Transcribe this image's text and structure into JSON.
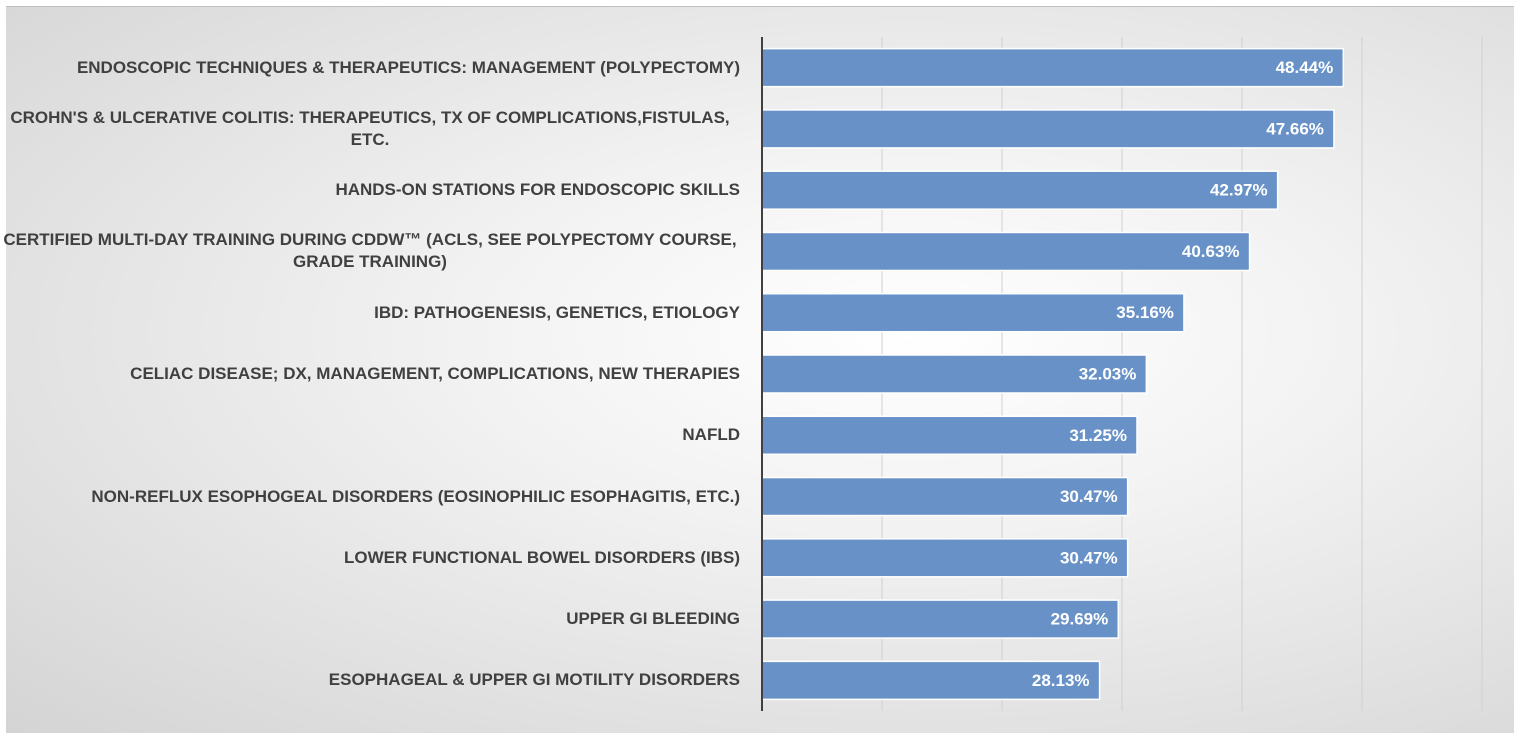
{
  "chart_data": {
    "type": "barh",
    "categories": [
      "ENDOSCOPIC TECHNIQUES & THERAPEUTICS: MANAGEMENT (POLYPECTOMY)",
      "CROHN'S & ULCERATIVE COLITIS: THERAPEUTICS, TX OF COMPLICATIONS,FISTULAS, ETC.",
      "HANDS-ON STATIONS FOR ENDOSCOPIC SKILLS",
      "CERTIFIED MULTI-DAY TRAINING DURING CDDW™ (ACLS, SEE POLYPECTOMY COURSE, GRADE TRAINING)",
      "IBD: PATHOGENESIS, GENETICS, ETIOLOGY",
      "CELIAC DISEASE; DX, MANAGEMENT, COMPLICATIONS, NEW THERAPIES",
      "NAFLD",
      "NON-REFLUX ESOPHOGEAL DISORDERS (EOSINOPHILIC ESOPHAGITIS, ETC.)",
      "LOWER FUNCTIONAL BOWEL DISORDERS (IBS)",
      "UPPER GI BLEEDING",
      "ESOPHAGEAL & UPPER GI MOTILITY DISORDERS"
    ],
    "values": [
      48.44,
      47.66,
      42.97,
      40.63,
      35.16,
      32.03,
      31.25,
      30.47,
      30.47,
      29.69,
      28.13
    ],
    "value_labels": [
      "48.44%",
      "47.66%",
      "42.97%",
      "40.63%",
      "35.16%",
      "32.03%",
      "31.25%",
      "30.47%",
      "30.47%",
      "29.69%",
      "28.13%"
    ],
    "color": "#6892c7",
    "xlim": [
      0,
      60
    ],
    "xticks": [
      0,
      10,
      20,
      30,
      40,
      50,
      60
    ],
    "grid": true
  }
}
